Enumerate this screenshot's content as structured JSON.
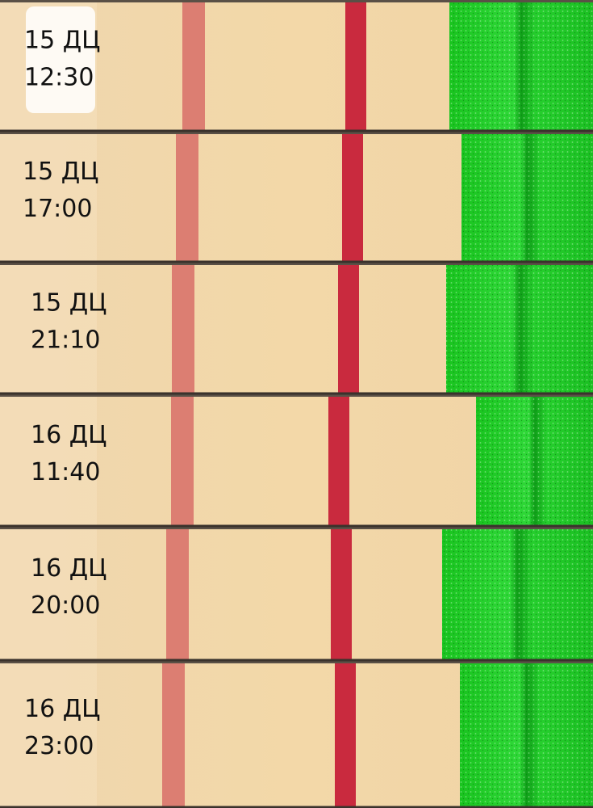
{
  "strips": [
    {
      "day": "15 ДЦ",
      "time": "12:30"
    },
    {
      "day": "15 ДЦ",
      "time": "17:00"
    },
    {
      "day": "15 ДЦ",
      "time": "21:10"
    },
    {
      "day": "16 ДЦ",
      "time": "11:40"
    },
    {
      "day": "16 ДЦ",
      "time": "20:00"
    },
    {
      "day": "16 ДЦ",
      "time": "23:00"
    }
  ]
}
